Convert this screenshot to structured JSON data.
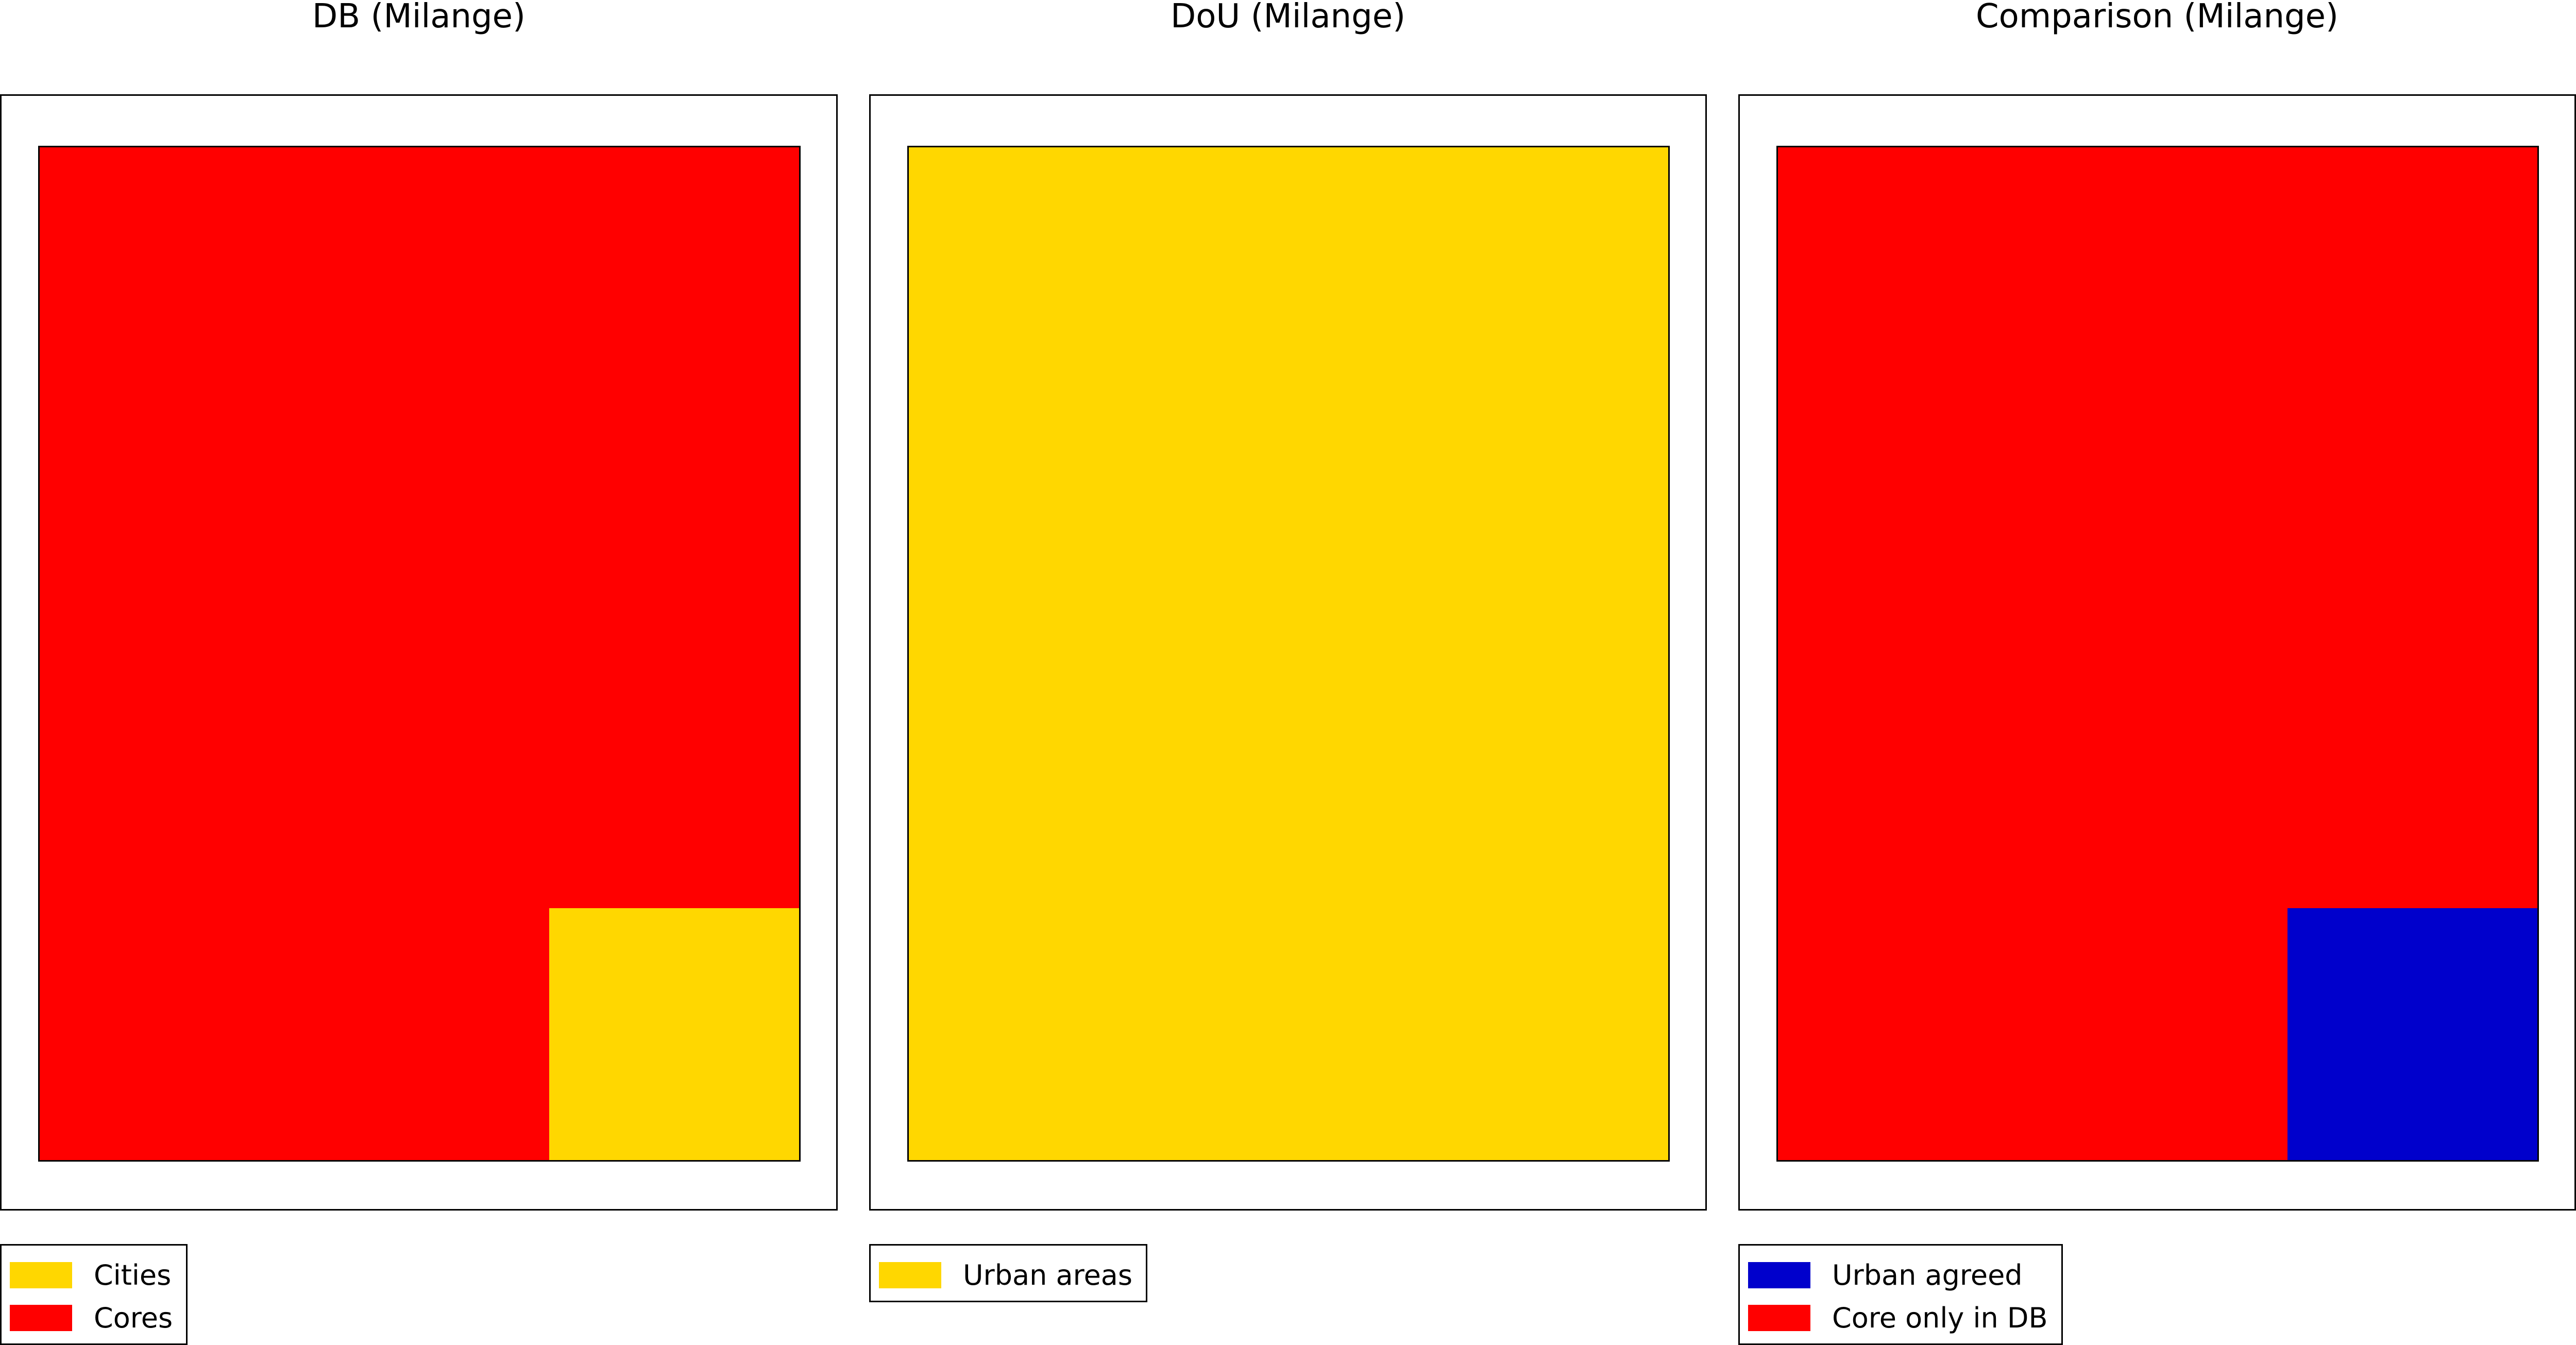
{
  "colors": {
    "cities": "#FFD700",
    "cores": "#FF0000",
    "urban_areas": "#FFD700",
    "urban_agreed": "#0000CC",
    "core_only_db": "#FF0000"
  },
  "panels": [
    {
      "title": "DB (Milange)",
      "legend": [
        {
          "label": "Cities",
          "color": "#FFD700"
        },
        {
          "label": "Cores",
          "color": "#FF0000"
        }
      ]
    },
    {
      "title": "DoU (Milange)",
      "legend": [
        {
          "label": "Urban areas",
          "color": "#FFD700"
        }
      ]
    },
    {
      "title": "Comparison (Milange)",
      "legend": [
        {
          "label": "Urban agreed",
          "color": "#0000CC"
        },
        {
          "label": "Core only in DB",
          "color": "#FF0000"
        }
      ]
    }
  ]
}
